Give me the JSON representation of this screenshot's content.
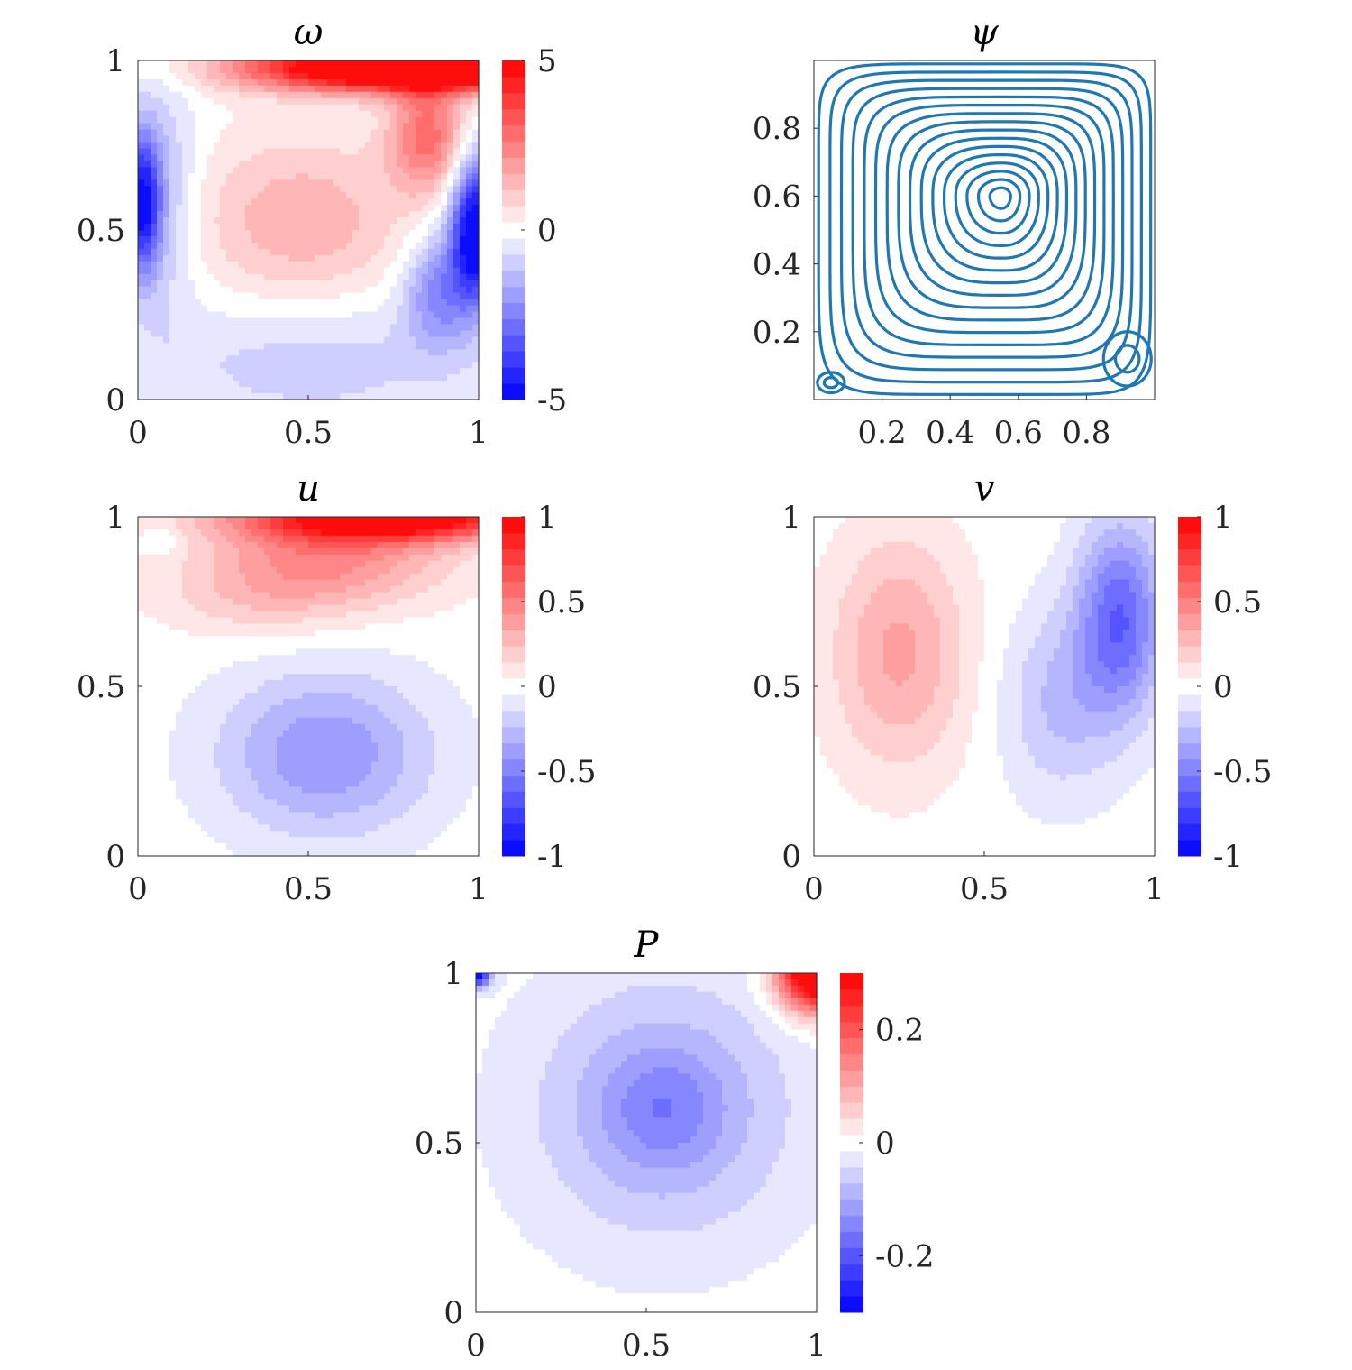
{
  "chart_data": [
    {
      "type": "heatmap",
      "title": "ω",
      "xlim": [
        0,
        1
      ],
      "ylim": [
        0,
        1
      ],
      "xticks": [
        "0",
        "0.5",
        "1"
      ],
      "yticks": [
        "0",
        "0.5",
        "1"
      ],
      "colorbar": {
        "ticks": [
          "5",
          "0",
          "-5"
        ],
        "range": [
          -5,
          5
        ],
        "levels": 21
      },
      "colormap": {
        "negative": "#0000ff",
        "zero": "#ffffff",
        "positive": "#ff0000"
      },
      "features": [
        {
          "x": 0.98,
          "y": 0.98,
          "value": 5.5,
          "sx": 0.3,
          "sy": 0.05
        },
        {
          "x": 0.6,
          "y": 0.98,
          "value": 4.0,
          "sx": 0.25,
          "sy": 0.05
        },
        {
          "x": 0.85,
          "y": 0.78,
          "value": 2.8,
          "sx": 0.08,
          "sy": 0.12
        },
        {
          "x": 0.48,
          "y": 0.52,
          "value": 1.6,
          "sx": 0.22,
          "sy": 0.18
        },
        {
          "x": 0.99,
          "y": 0.5,
          "value": -5.5,
          "sx": 0.05,
          "sy": 0.15
        },
        {
          "x": 0.88,
          "y": 0.32,
          "value": -2.2,
          "sx": 0.07,
          "sy": 0.12
        },
        {
          "x": 0.01,
          "y": 0.58,
          "value": -4.5,
          "sx": 0.04,
          "sy": 0.15
        },
        {
          "x": 0.08,
          "y": 0.6,
          "value": -1.2,
          "sx": 0.07,
          "sy": 0.25
        },
        {
          "x": 0.5,
          "y": 0.12,
          "value": -1.0,
          "sx": 0.35,
          "sy": 0.15
        }
      ]
    },
    {
      "type": "line",
      "title": "ψ",
      "xlim": [
        0,
        1
      ],
      "ylim": [
        0,
        1
      ],
      "xticks": [
        "0.2",
        "0.4",
        "0.6",
        "0.8"
      ],
      "yticks": [
        "0.2",
        "0.4",
        "0.6",
        "0.8"
      ],
      "color": "#1f77b4",
      "primary_vortex": {
        "center": [
          0.55,
          0.6
        ],
        "levels": 16
      },
      "secondary_vortices": [
        {
          "center": [
            0.92,
            0.12
          ],
          "rx": 0.07,
          "ry": 0.08
        },
        {
          "center": [
            0.05,
            0.05
          ],
          "rx": 0.04,
          "ry": 0.03
        }
      ]
    },
    {
      "type": "heatmap",
      "title": "u",
      "xlim": [
        0,
        1
      ],
      "ylim": [
        0,
        1
      ],
      "xticks": [
        "0",
        "0.5",
        "1"
      ],
      "yticks": [
        "0",
        "0.5",
        "1"
      ],
      "colorbar": {
        "ticks": [
          "1",
          "0.5",
          "0",
          "-0.5",
          "-1"
        ],
        "range": [
          -1,
          1
        ],
        "levels": 21
      },
      "colormap": {
        "negative": "#0000ff",
        "zero": "#ffffff",
        "positive": "#ff0000"
      },
      "features": [
        {
          "x": 0.75,
          "y": 1.0,
          "value": 1.1,
          "sx": 0.3,
          "sy": 0.05
        },
        {
          "x": 0.55,
          "y": 0.88,
          "value": 0.45,
          "sx": 0.25,
          "sy": 0.1
        },
        {
          "x": 0.35,
          "y": 0.75,
          "value": 0.15,
          "sx": 0.2,
          "sy": 0.08
        },
        {
          "x": 0.08,
          "y": 0.93,
          "value": -0.12,
          "sx": 0.04,
          "sy": 0.03
        },
        {
          "x": 0.55,
          "y": 0.3,
          "value": -0.42,
          "sx": 0.22,
          "sy": 0.17
        }
      ]
    },
    {
      "type": "heatmap",
      "title": "v",
      "xlim": [
        0,
        1
      ],
      "ylim": [
        0,
        1
      ],
      "xticks": [
        "0",
        "0.5",
        "1"
      ],
      "yticks": [
        "0",
        "0.5",
        "1"
      ],
      "colorbar": {
        "ticks": [
          "1",
          "0.5",
          "0",
          "-0.5",
          "-1"
        ],
        "range": [
          -1,
          1
        ],
        "levels": 21
      },
      "colormap": {
        "negative": "#0000ff",
        "zero": "#ffffff",
        "positive": "#ff0000"
      },
      "features": [
        {
          "x": 0.25,
          "y": 0.6,
          "value": 0.36,
          "sx": 0.14,
          "sy": 0.24
        },
        {
          "x": 0.9,
          "y": 0.7,
          "value": -0.6,
          "sx": 0.09,
          "sy": 0.2
        },
        {
          "x": 0.72,
          "y": 0.45,
          "value": -0.25,
          "sx": 0.12,
          "sy": 0.2
        }
      ]
    },
    {
      "type": "heatmap",
      "title": "P",
      "xlim": [
        0,
        1
      ],
      "ylim": [
        0,
        1
      ],
      "xticks": [
        "0",
        "0.5",
        "1"
      ],
      "yticks": [
        "0",
        "0.5",
        "1"
      ],
      "colorbar": {
        "ticks": [
          "0.2",
          "0",
          "-0.2"
        ],
        "range": [
          -0.3,
          0.3
        ],
        "levels": 21
      },
      "colormap": {
        "negative": "#0000ff",
        "zero": "#ffffff",
        "positive": "#ff0000"
      },
      "features": [
        {
          "x": 1.0,
          "y": 1.0,
          "value": 0.4,
          "sx": 0.08,
          "sy": 0.08
        },
        {
          "x": 0.55,
          "y": 0.6,
          "value": -0.1,
          "sx": 0.28,
          "sy": 0.28
        },
        {
          "x": 0.55,
          "y": 0.6,
          "value": -0.06,
          "sx": 0.12,
          "sy": 0.12
        },
        {
          "x": 0.0,
          "y": 1.0,
          "value": -0.3,
          "sx": 0.03,
          "sy": 0.03
        }
      ]
    }
  ]
}
